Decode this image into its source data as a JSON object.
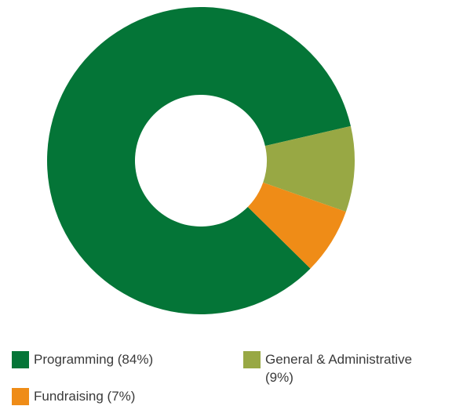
{
  "chart_data": {
    "type": "pie",
    "donut": true,
    "slices": [
      {
        "label": "Programming",
        "value": 84,
        "color": "#047537"
      },
      {
        "label": "General & Administrative",
        "value": 9,
        "color": "#98a844"
      },
      {
        "label": "Fundraising",
        "value": 7,
        "color": "#ef8c17"
      }
    ],
    "legend_placement": "bottom"
  },
  "legend": {
    "programming": "Programming (84%)",
    "general_admin": "General & Administrative\n(9%)",
    "fundraising": "Fundraising (7%)"
  }
}
